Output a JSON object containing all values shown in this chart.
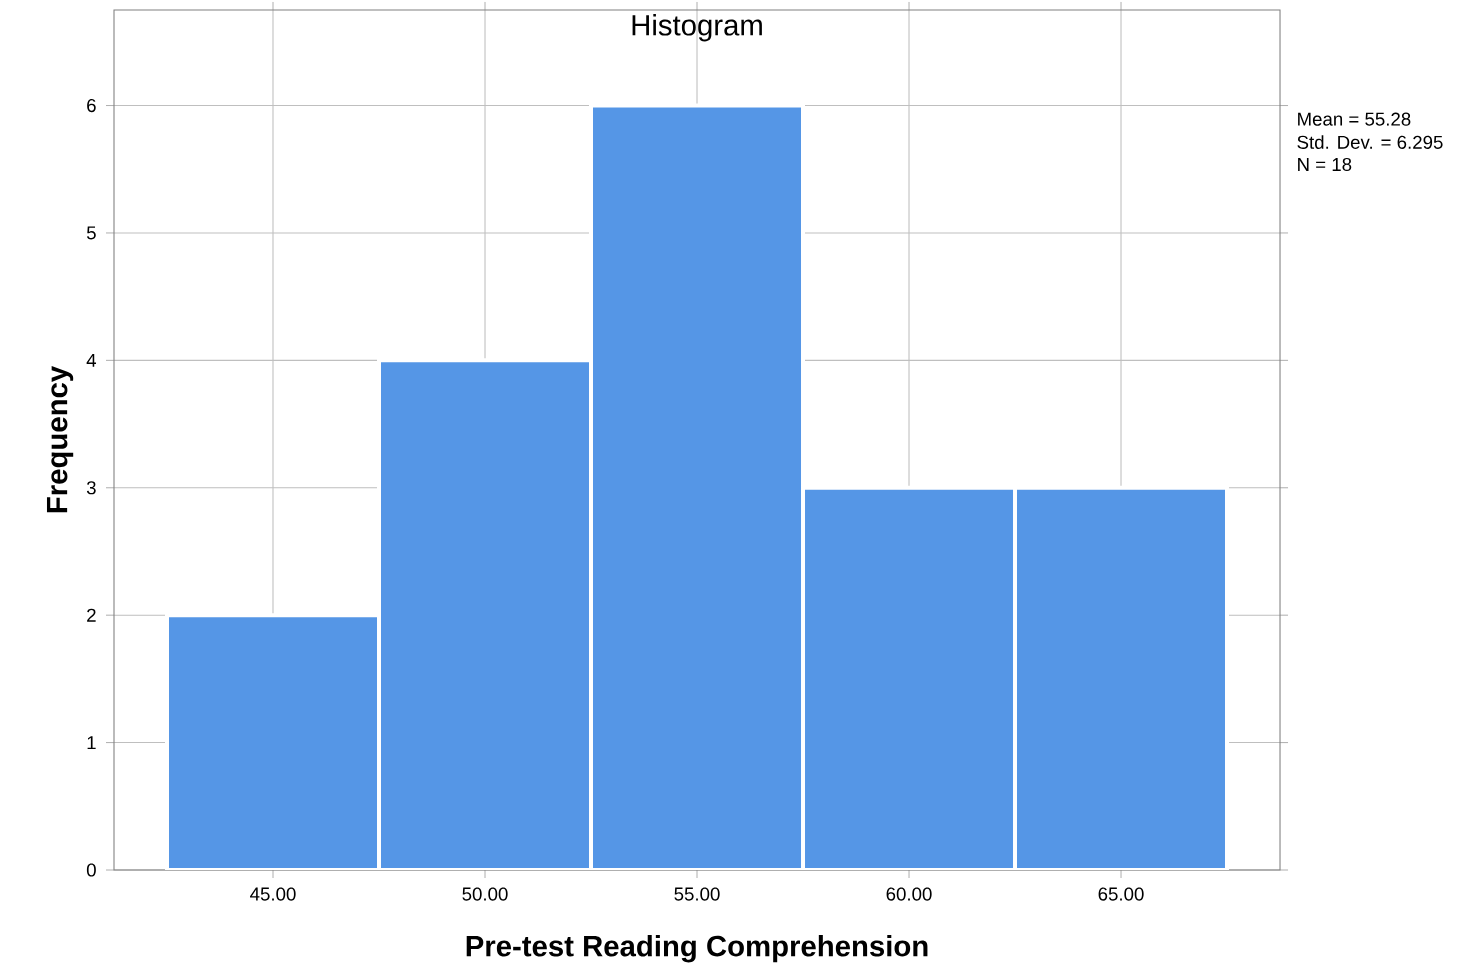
{
  "chart_data": {
    "type": "histogram",
    "title": "Histogram",
    "xlabel": "Pre-test Reading Comprehension",
    "ylabel": "Frequency",
    "bins": [
      42.5,
      47.5,
      52.5,
      57.5,
      62.5,
      67.5
    ],
    "values": [
      2,
      4,
      6,
      3,
      3
    ],
    "color": "#5596e6",
    "xlim": [
      41.25,
      68.75
    ],
    "ylim": [
      0,
      6.75
    ],
    "xticks": [
      {
        "value": 45,
        "label": "45.00"
      },
      {
        "value": 50,
        "label": "50.00"
      },
      {
        "value": 55,
        "label": "55.00"
      },
      {
        "value": 60,
        "label": "60.00"
      },
      {
        "value": 65,
        "label": "65.00"
      }
    ],
    "yticks": [
      0,
      1,
      2,
      3,
      4,
      5,
      6
    ],
    "grid": true,
    "annotations": [
      "Mean = 55.28",
      "Std. Dev. = 6.295",
      "N = 18"
    ]
  }
}
